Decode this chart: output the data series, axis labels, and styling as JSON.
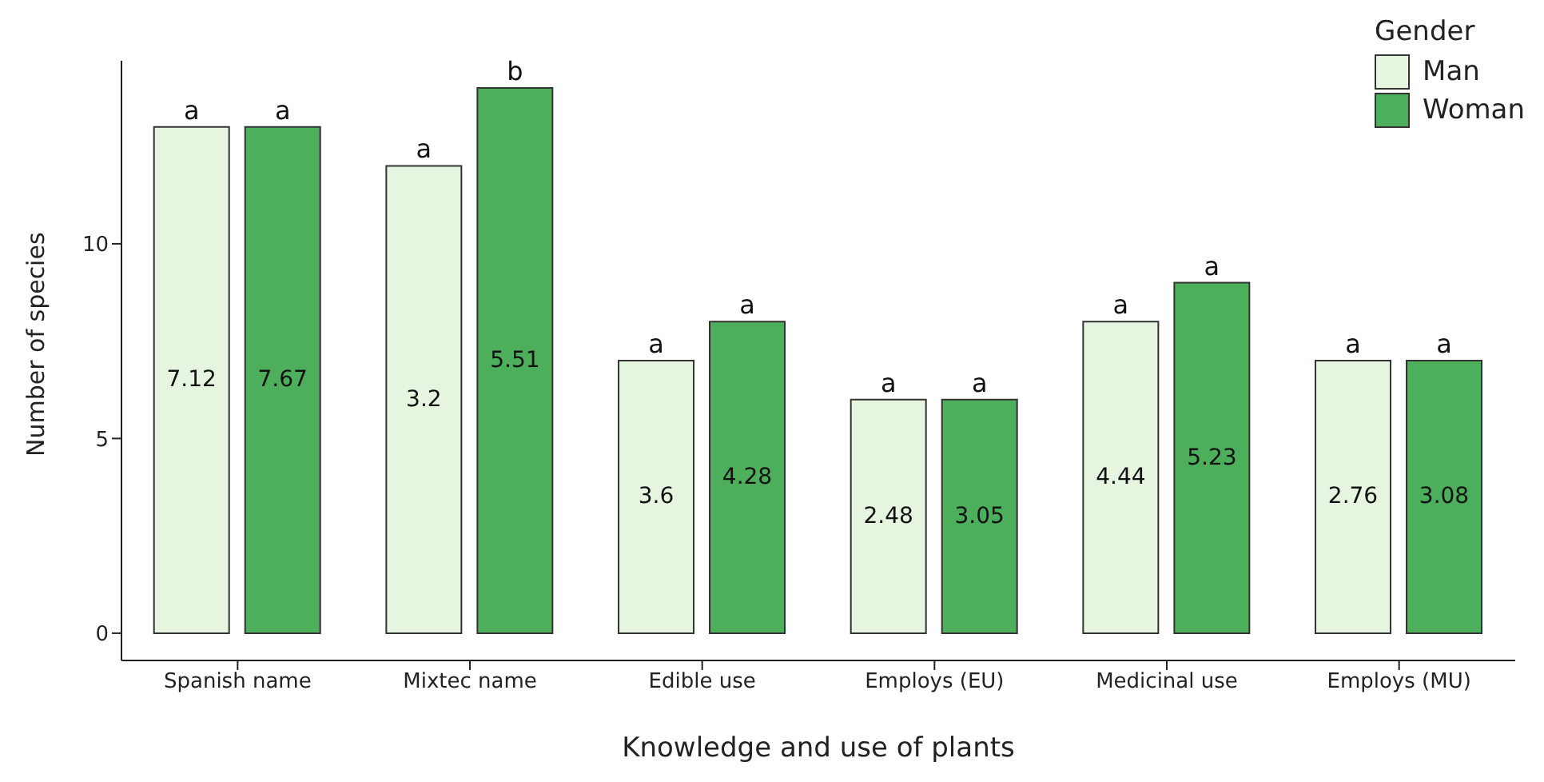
{
  "chart_data": {
    "type": "bar",
    "xlabel": "Knowledge and use of plants",
    "ylabel": "Number of species",
    "legend_title": "Gender",
    "legend": "top right",
    "grid": false,
    "categories": [
      "Spanish name",
      "Mixtec name",
      "Edible use",
      "Employs (EU)",
      "Medicinal use",
      "Employs (MU)"
    ],
    "ylim": [
      -0.7,
      14.7
    ],
    "yticks": [
      0,
      5,
      10
    ],
    "series": [
      {
        "name": "Man",
        "color": "#e5f5e0",
        "values": [
          13,
          12,
          7,
          6,
          8,
          7
        ]
      },
      {
        "name": "Woman",
        "color": "#4daf5b",
        "values": [
          13,
          14,
          8,
          6,
          9,
          7
        ]
      }
    ],
    "annotations": [
      {
        "text": "a",
        "x": "Spanish name",
        "y": 13
      },
      {
        "text": "a",
        "x": "Spanish name",
        "y": 13
      },
      {
        "text": "a",
        "x": "Mixtec name",
        "y": 12
      },
      {
        "text": "b",
        "x": "Mixtec name",
        "y": 14
      },
      {
        "text": "a",
        "x": "Edible use",
        "y": 7
      },
      {
        "text": "a",
        "x": "Edible use",
        "y": 8
      },
      {
        "text": "a",
        "x": "Employs (EU)",
        "y": 6
      },
      {
        "text": "a",
        "x": "Employs (EU)",
        "y": 6
      },
      {
        "text": "a",
        "x": "Medicinal use",
        "y": 8
      },
      {
        "text": "a",
        "x": "Medicinal use",
        "y": 9
      },
      {
        "text": "a",
        "x": "Employs (MU)",
        "y": 7
      },
      {
        "text": "a",
        "x": "Employs (MU)",
        "y": 7
      },
      {
        "text": "7.12",
        "x": "Spanish name",
        "y": 6.5
      },
      {
        "text": "7.67",
        "x": "Spanish name",
        "y": 6.5
      },
      {
        "text": "3.2",
        "x": "Mixtec name",
        "y": 6
      },
      {
        "text": "5.51",
        "x": "Mixtec name",
        "y": 7
      },
      {
        "text": "3.6",
        "x": "Edible use",
        "y": 3.5
      },
      {
        "text": "4.28",
        "x": "Edible use",
        "y": 4
      },
      {
        "text": "2.48",
        "x": "Employs (EU)",
        "y": 3
      },
      {
        "text": "3.05",
        "x": "Employs (EU)",
        "y": 3
      },
      {
        "text": "4.44",
        "x": "Medicinal use",
        "y": 4
      },
      {
        "text": "5.23",
        "x": "Medicinal use",
        "y": 4.5
      },
      {
        "text": "2.76",
        "x": "Employs (MU)",
        "y": 3.5
      },
      {
        "text": "3.08",
        "x": "Employs (MU)",
        "y": 3.5
      }
    ]
  }
}
